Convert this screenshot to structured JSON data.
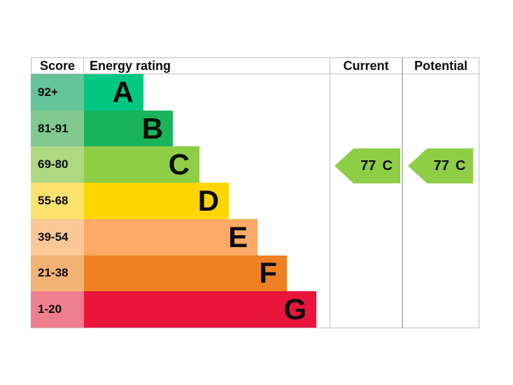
{
  "header": {
    "score": "Score",
    "rating": "Energy rating",
    "current": "Current",
    "potential": "Potential"
  },
  "bands": [
    {
      "score": "92+",
      "letter": "A",
      "bar_color": "#00c781",
      "score_color": "#66c498",
      "width": "24.2%"
    },
    {
      "score": "81-91",
      "letter": "B",
      "bar_color": "#19b459",
      "score_color": "#7fc98f",
      "width": "36.2%"
    },
    {
      "score": "69-80",
      "letter": "C",
      "bar_color": "#8dce46",
      "score_color": "#aed982",
      "width": "47.0%"
    },
    {
      "score": "55-68",
      "letter": "D",
      "bar_color": "#ffd500",
      "score_color": "#fbe26c",
      "width": "59.0%"
    },
    {
      "score": "39-54",
      "letter": "E",
      "bar_color": "#fcaa65",
      "score_color": "#fcc898",
      "width": "70.7%"
    },
    {
      "score": "21-38",
      "letter": "F",
      "bar_color": "#ef8023",
      "score_color": "#f2b273",
      "width": "82.6%"
    },
    {
      "score": "1-20",
      "letter": "G",
      "bar_color": "#e9153b",
      "score_color": "#ef7e8e",
      "width": "94.6%"
    }
  ],
  "current": {
    "value": "77",
    "band": "C",
    "arrow_color": "#8dce46"
  },
  "potential": {
    "value": "77",
    "band": "C",
    "arrow_color": "#8dce46"
  },
  "border_color": "#bcbfc1",
  "chart_data": {
    "type": "bar",
    "title": "",
    "categories": [
      "A",
      "B",
      "C",
      "D",
      "E",
      "F",
      "G"
    ],
    "score_ranges": [
      "92+",
      "81-91",
      "69-80",
      "55-68",
      "39-54",
      "21-38",
      "1-20"
    ],
    "band_colors": [
      "#00c781",
      "#19b459",
      "#8dce46",
      "#ffd500",
      "#fcaa65",
      "#ef8023",
      "#e9153b"
    ],
    "bar_relative_widths": [
      0.242,
      0.362,
      0.47,
      0.59,
      0.707,
      0.826,
      0.946
    ],
    "columns": [
      "Score",
      "Energy rating",
      "Current",
      "Potential"
    ],
    "current": {
      "score": 77,
      "band": "C"
    },
    "potential": {
      "score": 77,
      "band": "C"
    },
    "legend_position": "none",
    "grid": false
  }
}
